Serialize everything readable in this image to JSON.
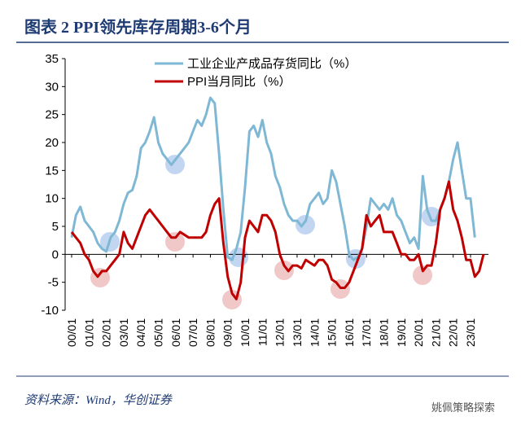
{
  "chart_data": {
    "type": "line",
    "title": "图表 2  PPI领先库存周期3-6个月",
    "source": "资料来源：Wind，华创证券",
    "watermark": "姚佩策略探索",
    "categories": [
      "00/01",
      null,
      null,
      null,
      "01/01",
      null,
      null,
      null,
      "02/01",
      null,
      null,
      null,
      "03/01",
      null,
      null,
      null,
      "04/01",
      null,
      null,
      null,
      "05/01",
      null,
      null,
      null,
      "06/01",
      null,
      null,
      null,
      "07/01",
      null,
      null,
      null,
      "08/01",
      null,
      null,
      null,
      "09/01",
      null,
      null,
      null,
      "10/01",
      null,
      null,
      null,
      "11/01",
      null,
      null,
      null,
      "12/01",
      null,
      null,
      null,
      "13/01",
      null,
      null,
      null,
      "14/01",
      null,
      null,
      null,
      "15/01",
      null,
      null,
      null,
      "16/01",
      null,
      null,
      null,
      "17/01",
      null,
      null,
      null,
      "18/01",
      null,
      null,
      null,
      "19/01",
      null,
      null,
      null,
      "20/01",
      null,
      null,
      null,
      "21/01",
      null,
      null,
      null,
      "22/01",
      null,
      null,
      null,
      "23/01",
      null,
      null,
      null
    ],
    "series": [
      {
        "name": "工业企业产成品存货同比（%）",
        "color": "#7fb8d4",
        "values": [
          3,
          7,
          8.5,
          6,
          5,
          4,
          2,
          1,
          0.5,
          3,
          4,
          6,
          9,
          11,
          11.5,
          14,
          19,
          20,
          22,
          24.5,
          20,
          18,
          17,
          16,
          17,
          18,
          19,
          20,
          22,
          24,
          23,
          25,
          28,
          27,
          18,
          8,
          -0.5,
          -1,
          1,
          4,
          12,
          22,
          23,
          21,
          24,
          20,
          18,
          14,
          12,
          9,
          7,
          6,
          6,
          5,
          6,
          9,
          10,
          11,
          9,
          10,
          15,
          13,
          9,
          5,
          0,
          -1,
          -0.5,
          1,
          5,
          10,
          9,
          8,
          9,
          8,
          10,
          7,
          6,
          4,
          2,
          3,
          1,
          14,
          8,
          6,
          6,
          8,
          10,
          13,
          17,
          20,
          15,
          10,
          10,
          3,
          null,
          null
        ]
      },
      {
        "name": "PPI当月同比（%）",
        "color": "#c00000",
        "values": [
          4,
          3,
          2,
          0,
          -1,
          -3,
          -4,
          -3,
          -3,
          -2,
          -1,
          0,
          4,
          2,
          1,
          3,
          5,
          7,
          8,
          7,
          6,
          5,
          4,
          3,
          3,
          4,
          3.5,
          3,
          3,
          3,
          3,
          4,
          7,
          9,
          10,
          2,
          -4,
          -7,
          -8,
          -5,
          3,
          6,
          5,
          4,
          7,
          7,
          6,
          4,
          0,
          -2,
          -3,
          -2,
          -2,
          -2.5,
          -1,
          -1.5,
          -2,
          -1,
          -1,
          -2,
          -4.5,
          -5,
          -6,
          -6,
          -5,
          -3,
          -1,
          1,
          7,
          5,
          6,
          7,
          4,
          4,
          4,
          2,
          0,
          0,
          -1,
          -1,
          0,
          -3,
          -2,
          -2,
          2,
          8,
          10,
          13,
          8,
          6,
          3,
          -1,
          -1,
          -4,
          -3,
          0
        ]
      }
    ],
    "ylim": [
      -10,
      35
    ],
    "yticks": [
      -10,
      -5,
      0,
      5,
      10,
      15,
      20,
      25,
      30,
      35
    ]
  }
}
